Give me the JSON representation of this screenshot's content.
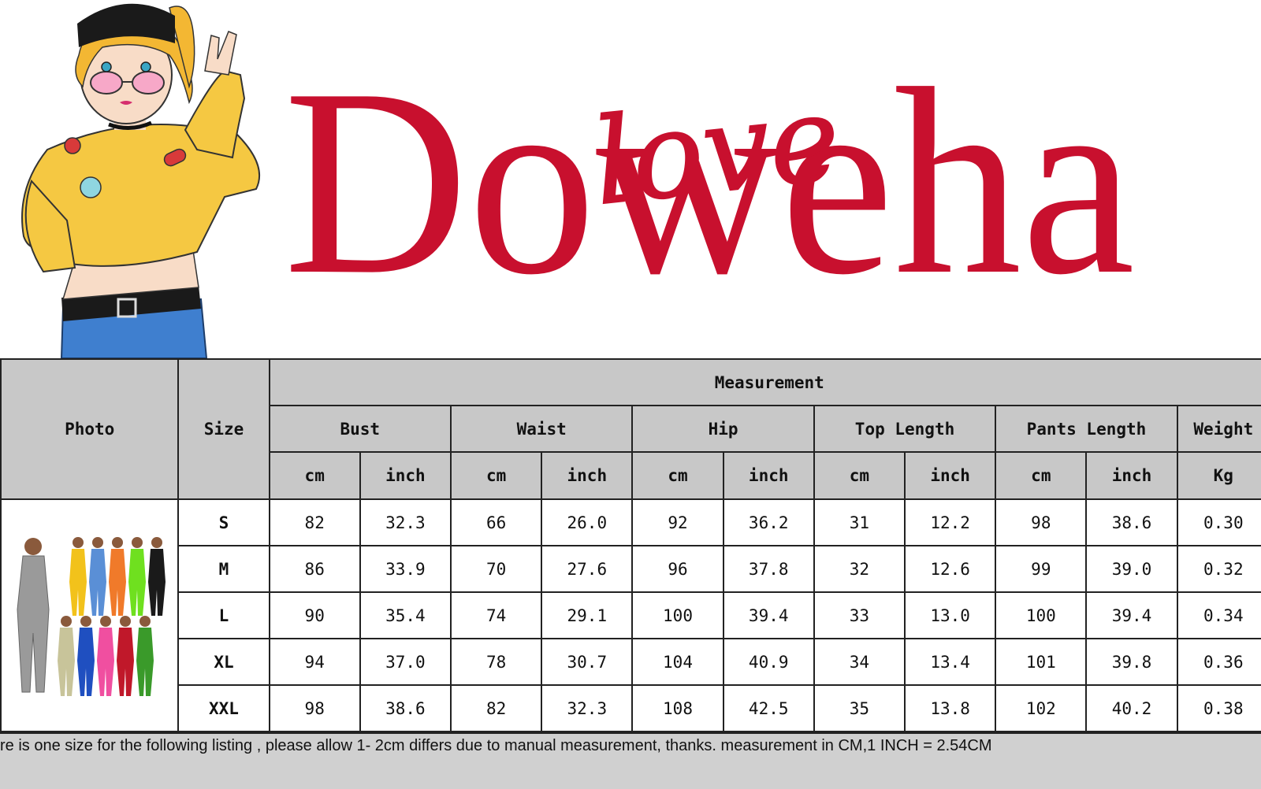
{
  "brand": {
    "name": "Doweha",
    "script_overlay": "love",
    "color": "#c8102e"
  },
  "table": {
    "header": {
      "photo": "Photo",
      "size": "Size",
      "measurement": "Measurement",
      "groups": [
        "Bust",
        "Waist",
        "Hip",
        "Top Length",
        "Pants Length",
        "Weight"
      ],
      "units": [
        "cm",
        "inch",
        "cm",
        "inch",
        "cm",
        "inch",
        "cm",
        "inch",
        "cm",
        "inch",
        "Kg"
      ]
    },
    "rows": [
      {
        "size": "S",
        "values": [
          "82",
          "32.3",
          "66",
          "26.0",
          "92",
          "36.2",
          "31",
          "12.2",
          "98",
          "38.6",
          "0.30"
        ]
      },
      {
        "size": "M",
        "values": [
          "86",
          "33.9",
          "70",
          "27.6",
          "96",
          "37.8",
          "32",
          "12.6",
          "99",
          "39.0",
          "0.32"
        ]
      },
      {
        "size": "L",
        "values": [
          "90",
          "35.4",
          "74",
          "29.1",
          "100",
          "39.4",
          "33",
          "13.0",
          "100",
          "39.4",
          "0.34"
        ]
      },
      {
        "size": "XL",
        "values": [
          "94",
          "37.0",
          "78",
          "30.7",
          "104",
          "40.9",
          "34",
          "13.4",
          "101",
          "39.8",
          "0.36"
        ]
      },
      {
        "size": "XXL",
        "values": [
          "98",
          "38.6",
          "82",
          "32.3",
          "108",
          "42.5",
          "35",
          "13.8",
          "102",
          "40.2",
          "0.38"
        ]
      }
    ]
  },
  "footer": {
    "note": "re is one size for the following listing , please allow 1- 2cm differs due to manual measurement, thanks.  measurement in CM,1 INCH = 2.54CM"
  }
}
